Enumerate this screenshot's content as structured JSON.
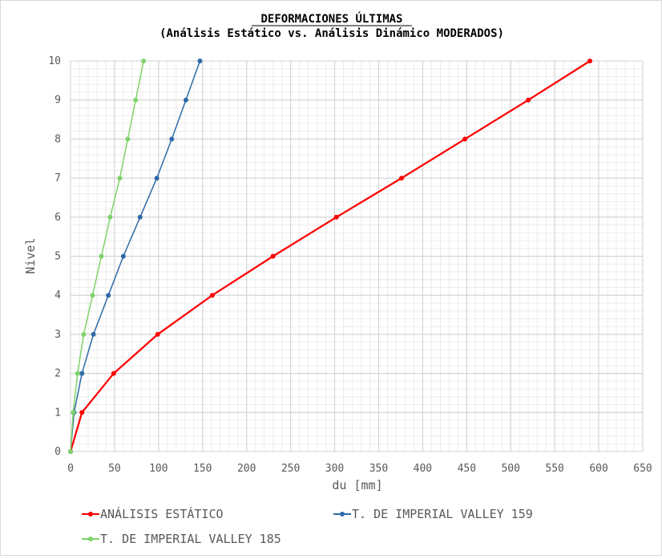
{
  "chart_data": {
    "type": "line",
    "title": "DEFORMACIONES ÚLTIMAS",
    "subtitle": "(Análisis Estático vs. Análisis Dinámico MODERADOS)",
    "xlabel": "du [mm]",
    "ylabel": "Nivel",
    "xlim": [
      0,
      650
    ],
    "ylim": [
      0,
      10
    ],
    "xticks": [
      0,
      50,
      100,
      150,
      200,
      250,
      300,
      350,
      400,
      450,
      500,
      550,
      600,
      650
    ],
    "yticks": [
      0,
      1,
      2,
      3,
      4,
      5,
      6,
      7,
      8,
      9,
      10
    ],
    "x_minor_step": 10,
    "y_minor_step": 0.2,
    "grid": true,
    "legend_position": "bottom",
    "series": [
      {
        "name": "ANÁLISIS ESTÁTICO",
        "color": "#ff0000",
        "x": [
          0,
          13,
          49,
          99,
          161,
          230,
          302,
          376,
          448,
          520,
          590
        ],
        "y": [
          0,
          1,
          2,
          3,
          4,
          5,
          6,
          7,
          8,
          9,
          10
        ]
      },
      {
        "name": "T. DE IMPERIAL VALLEY 159",
        "color": "#2e6aa8",
        "x": [
          0,
          4,
          13,
          26,
          43,
          60,
          79,
          98,
          115,
          131,
          147
        ],
        "y": [
          0,
          1,
          2,
          3,
          4,
          5,
          6,
          7,
          8,
          9,
          10
        ]
      },
      {
        "name": "T. DE IMPERIAL VALLEY 185",
        "color": "#7fd36a",
        "x": [
          0,
          3,
          8,
          15,
          25,
          35,
          45,
          56,
          65,
          74,
          83
        ],
        "y": [
          0,
          1,
          2,
          3,
          4,
          5,
          6,
          7,
          8,
          9,
          10
        ]
      }
    ]
  }
}
